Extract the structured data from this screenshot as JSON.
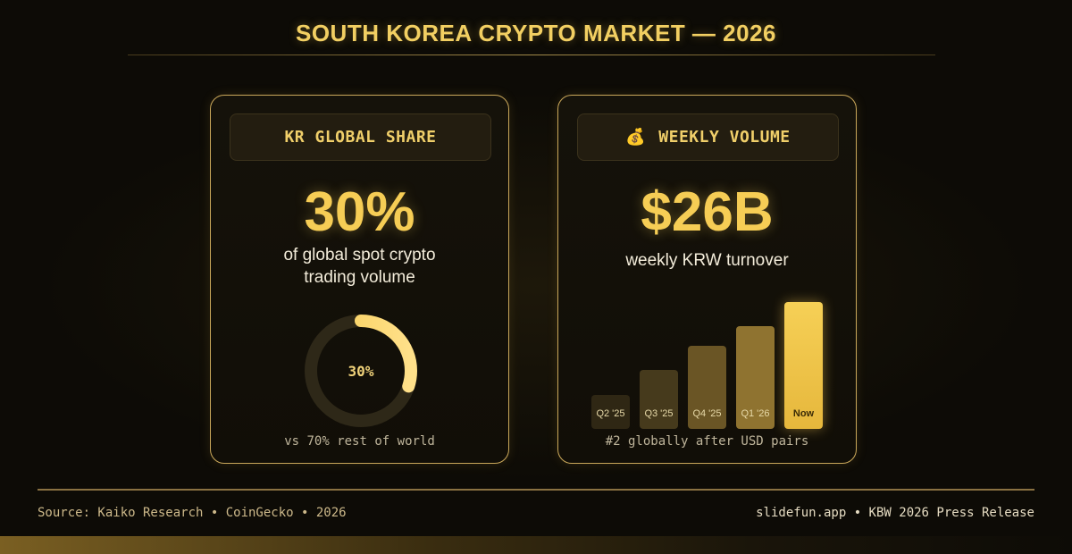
{
  "header": {
    "title": "SOUTH KOREA CRYPTO MARKET — 2026"
  },
  "cards": {
    "share": {
      "chip_label": "KR GLOBAL SHARE",
      "value": "30%",
      "description_line1": "of global spot crypto",
      "description_line2": "trading volume",
      "donut": {
        "percent": 30,
        "center_label": "30%"
      },
      "footnote": "vs 70% rest of world"
    },
    "volume": {
      "chip_icon": "money-bag-icon",
      "chip_emoji": "💰",
      "chip_label": "WEEKLY VOLUME",
      "value": "$26B",
      "description": "weekly KRW turnover",
      "footnote": "#2 globally after USD pairs"
    }
  },
  "chart_data": {
    "type": "bar",
    "categories": [
      "Q2 '25",
      "Q3 '25",
      "Q4 '25",
      "Q1 '26",
      "Now"
    ],
    "values": [
      7,
      12,
      17,
      21,
      26
    ],
    "title": "",
    "xlabel": "",
    "ylabel": ""
  },
  "footer": {
    "source": "Source: Kaiko Research • CoinGecko • 2026",
    "credit": "slidefun.app • KBW 2026 Press Release"
  },
  "colors": {
    "accent": "#f6cd55",
    "card_border": "#c9a75a",
    "background": "#0d0b06"
  }
}
